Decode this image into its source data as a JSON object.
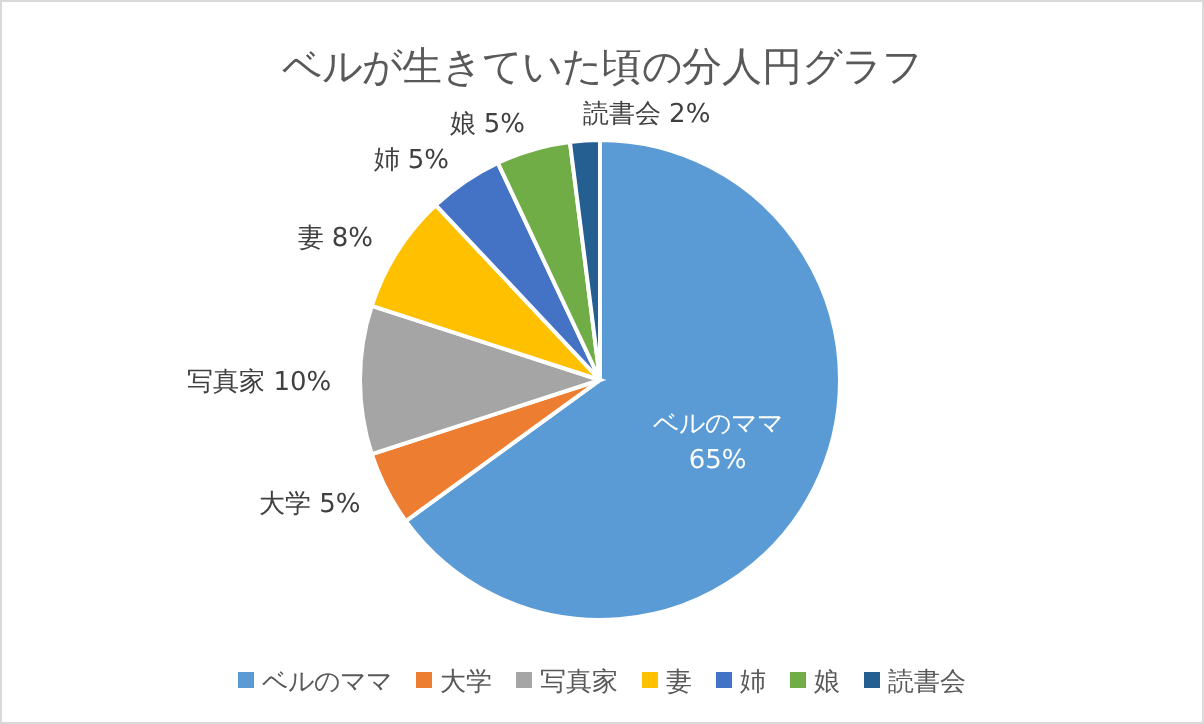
{
  "chart_data": {
    "type": "pie",
    "title": "ベルが生きていた頃の分人円グラフ",
    "categories": [
      "ベルのママ",
      "大学",
      "写真家",
      "妻",
      "姉",
      "娘",
      "読書会"
    ],
    "values": [
      65,
      5,
      10,
      8,
      5,
      5,
      2
    ],
    "colors": [
      "#5b9bd5",
      "#ed7d31",
      "#a5a5a5",
      "#ffc000",
      "#4472c4",
      "#70ad47",
      "#255e91"
    ],
    "value_labels": [
      "65%",
      "5%",
      "10%",
      "8%",
      "5%",
      "5%",
      "2%"
    ],
    "legend": "bottom"
  }
}
